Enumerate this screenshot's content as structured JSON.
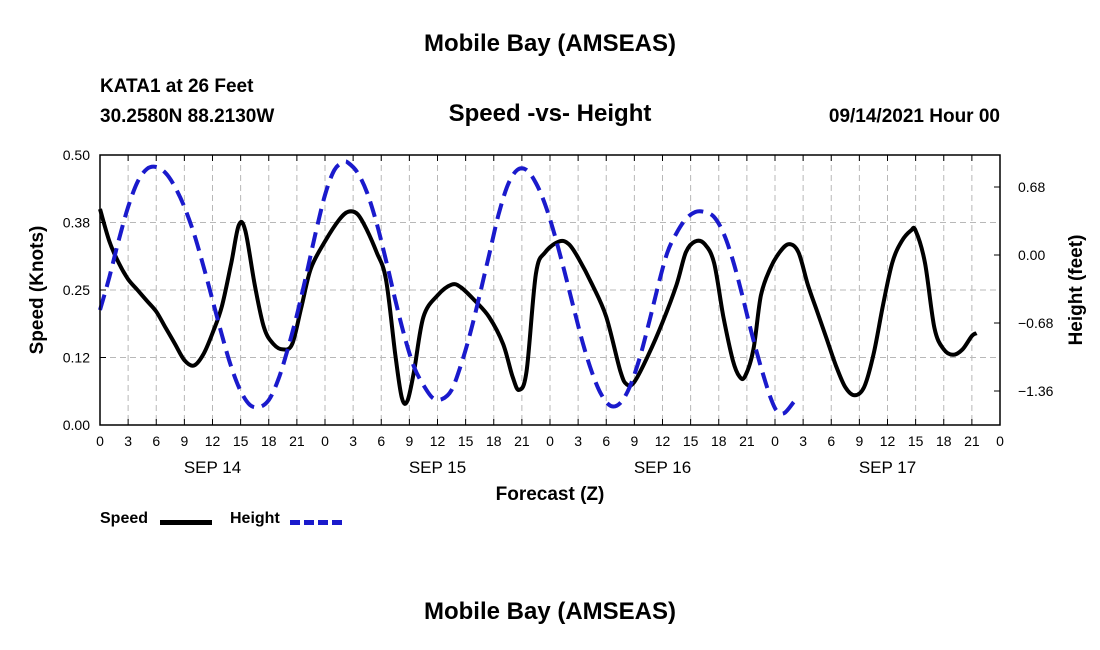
{
  "header": {
    "title": "Mobile Bay (AMSEAS)",
    "station": "KATA1 at 26 Feet",
    "coordinates": "30.2580N  88.2130W",
    "subtitle": "Speed -vs- Height",
    "datestamp": "09/14/2021 Hour 00"
  },
  "footer": {
    "title": "Mobile Bay (AMSEAS)"
  },
  "legend": {
    "speed_label": "Speed",
    "height_label": "Height"
  },
  "chart_data": {
    "type": "line",
    "title": "Speed -vs- Height",
    "xlabel": "Forecast (Z)",
    "ylabel": "Speed (Knots)",
    "y2label": "Height (feet)",
    "x_range_hours": [
      0,
      96
    ],
    "ylim": [
      0,
      0.5
    ],
    "y2lim": [
      -1.7,
      1.0
    ],
    "grid": true,
    "legend_position": "bottom-left",
    "y_ticks": [
      {
        "value": 0.0,
        "label": "0.00"
      },
      {
        "value": 0.125,
        "label": "0.12"
      },
      {
        "value": 0.25,
        "label": "0.25"
      },
      {
        "value": 0.375,
        "label": "0.38"
      },
      {
        "value": 0.5,
        "label": "0.50"
      }
    ],
    "y2_ticks": [
      {
        "value": 0.68,
        "label": "0.68"
      },
      {
        "value": 0.0,
        "label": "0.00"
      },
      {
        "value": -0.68,
        "label": "−0.68"
      },
      {
        "value": -1.36,
        "label": "−1.36"
      }
    ],
    "x_ticks": [
      {
        "hour": 0,
        "label": "0"
      },
      {
        "hour": 3,
        "label": "3"
      },
      {
        "hour": 6,
        "label": "6"
      },
      {
        "hour": 9,
        "label": "9"
      },
      {
        "hour": 12,
        "label": "12"
      },
      {
        "hour": 15,
        "label": "15"
      },
      {
        "hour": 18,
        "label": "18"
      },
      {
        "hour": 21,
        "label": "21"
      },
      {
        "hour": 24,
        "label": "0"
      },
      {
        "hour": 27,
        "label": "3"
      },
      {
        "hour": 30,
        "label": "6"
      },
      {
        "hour": 33,
        "label": "9"
      },
      {
        "hour": 36,
        "label": "12"
      },
      {
        "hour": 39,
        "label": "15"
      },
      {
        "hour": 42,
        "label": "18"
      },
      {
        "hour": 45,
        "label": "21"
      },
      {
        "hour": 48,
        "label": "0"
      },
      {
        "hour": 51,
        "label": "3"
      },
      {
        "hour": 54,
        "label": "6"
      },
      {
        "hour": 57,
        "label": "9"
      },
      {
        "hour": 60,
        "label": "12"
      },
      {
        "hour": 63,
        "label": "15"
      },
      {
        "hour": 66,
        "label": "18"
      },
      {
        "hour": 69,
        "label": "21"
      },
      {
        "hour": 72,
        "label": "0"
      },
      {
        "hour": 75,
        "label": "3"
      },
      {
        "hour": 78,
        "label": "6"
      },
      {
        "hour": 81,
        "label": "9"
      },
      {
        "hour": 84,
        "label": "12"
      },
      {
        "hour": 87,
        "label": "15"
      },
      {
        "hour": 90,
        "label": "18"
      },
      {
        "hour": 93,
        "label": "21"
      },
      {
        "hour": 96,
        "label": "0"
      }
    ],
    "day_labels": [
      {
        "hour": 12,
        "label": "SEP 14"
      },
      {
        "hour": 36,
        "label": "SEP 15"
      },
      {
        "hour": 60,
        "label": "SEP 16"
      },
      {
        "hour": 84,
        "label": "SEP 17"
      }
    ],
    "series": [
      {
        "name": "Speed",
        "axis": "left",
        "color": "#000000",
        "style": "solid",
        "points": [
          [
            0,
            0.4
          ],
          [
            1,
            0.34
          ],
          [
            2,
            0.3
          ],
          [
            3,
            0.27
          ],
          [
            4,
            0.25
          ],
          [
            5,
            0.23
          ],
          [
            6,
            0.21
          ],
          [
            7,
            0.18
          ],
          [
            8,
            0.15
          ],
          [
            9,
            0.12
          ],
          [
            10,
            0.11
          ],
          [
            11,
            0.13
          ],
          [
            12,
            0.17
          ],
          [
            13,
            0.22
          ],
          [
            14,
            0.3
          ],
          [
            14.8,
            0.37
          ],
          [
            15.5,
            0.36
          ],
          [
            16.5,
            0.26
          ],
          [
            17.5,
            0.18
          ],
          [
            18.5,
            0.15
          ],
          [
            19.5,
            0.14
          ],
          [
            20.5,
            0.15
          ],
          [
            21.5,
            0.22
          ],
          [
            22.5,
            0.29
          ],
          [
            24,
            0.34
          ],
          [
            25.5,
            0.38
          ],
          [
            26.5,
            0.395
          ],
          [
            27.5,
            0.39
          ],
          [
            28.5,
            0.36
          ],
          [
            29.5,
            0.32
          ],
          [
            30.5,
            0.27
          ],
          [
            31.5,
            0.13
          ],
          [
            32.2,
            0.05
          ],
          [
            32.8,
            0.045
          ],
          [
            33.5,
            0.1
          ],
          [
            34.5,
            0.2
          ],
          [
            36,
            0.24
          ],
          [
            37.5,
            0.26
          ],
          [
            38.5,
            0.255
          ],
          [
            40,
            0.23
          ],
          [
            41.5,
            0.2
          ],
          [
            43,
            0.15
          ],
          [
            44,
            0.09
          ],
          [
            44.7,
            0.065
          ],
          [
            45.5,
            0.1
          ],
          [
            46.5,
            0.28
          ],
          [
            47.5,
            0.32
          ],
          [
            49,
            0.34
          ],
          [
            50,
            0.335
          ],
          [
            51,
            0.31
          ],
          [
            52.5,
            0.26
          ],
          [
            54,
            0.2
          ],
          [
            55.5,
            0.1
          ],
          [
            56.2,
            0.075
          ],
          [
            57,
            0.08
          ],
          [
            58.5,
            0.13
          ],
          [
            60,
            0.19
          ],
          [
            61.5,
            0.26
          ],
          [
            62.5,
            0.32
          ],
          [
            63.5,
            0.34
          ],
          [
            64.5,
            0.335
          ],
          [
            65.5,
            0.3
          ],
          [
            66.5,
            0.2
          ],
          [
            67.5,
            0.12
          ],
          [
            68.2,
            0.09
          ],
          [
            68.8,
            0.09
          ],
          [
            69.7,
            0.14
          ],
          [
            70.5,
            0.24
          ],
          [
            71.5,
            0.29
          ],
          [
            72.5,
            0.32
          ],
          [
            73.5,
            0.335
          ],
          [
            74.5,
            0.32
          ],
          [
            75.5,
            0.26
          ],
          [
            76.5,
            0.21
          ],
          [
            77.5,
            0.16
          ],
          [
            78.5,
            0.11
          ],
          [
            79.5,
            0.07
          ],
          [
            80.5,
            0.055
          ],
          [
            81.5,
            0.07
          ],
          [
            82.5,
            0.13
          ],
          [
            83.5,
            0.22
          ],
          [
            84.5,
            0.3
          ],
          [
            85.5,
            0.34
          ],
          [
            86.5,
            0.36
          ],
          [
            87,
            0.36
          ],
          [
            88,
            0.3
          ],
          [
            89,
            0.18
          ],
          [
            90,
            0.14
          ],
          [
            91,
            0.13
          ],
          [
            92,
            0.14
          ],
          [
            93,
            0.165
          ],
          [
            93.5,
            0.17
          ]
        ]
      },
      {
        "name": "Height",
        "axis": "right",
        "color": "#1a1acc",
        "style": "dashed",
        "points": [
          [
            0,
            -0.55
          ],
          [
            1,
            -0.22
          ],
          [
            2,
            0.15
          ],
          [
            3,
            0.48
          ],
          [
            4,
            0.73
          ],
          [
            5,
            0.86
          ],
          [
            6,
            0.88
          ],
          [
            7,
            0.82
          ],
          [
            8,
            0.68
          ],
          [
            9,
            0.48
          ],
          [
            10,
            0.22
          ],
          [
            11,
            -0.1
          ],
          [
            12,
            -0.45
          ],
          [
            13,
            -0.8
          ],
          [
            14,
            -1.12
          ],
          [
            15,
            -1.36
          ],
          [
            16,
            -1.5
          ],
          [
            17,
            -1.52
          ],
          [
            18,
            -1.45
          ],
          [
            19,
            -1.25
          ],
          [
            20,
            -0.95
          ],
          [
            21,
            -0.6
          ],
          [
            22,
            -0.2
          ],
          [
            23,
            0.22
          ],
          [
            24,
            0.6
          ],
          [
            25,
            0.85
          ],
          [
            26,
            0.93
          ],
          [
            26.5,
            0.92
          ],
          [
            27.5,
            0.82
          ],
          [
            28.5,
            0.62
          ],
          [
            29.5,
            0.32
          ],
          [
            30.5,
            -0.05
          ],
          [
            31.5,
            -0.45
          ],
          [
            32.5,
            -0.82
          ],
          [
            33.5,
            -1.12
          ],
          [
            34.5,
            -1.3
          ],
          [
            35.5,
            -1.43
          ],
          [
            36.5,
            -1.44
          ],
          [
            37.5,
            -1.35
          ],
          [
            38.5,
            -1.1
          ],
          [
            39.5,
            -0.78
          ],
          [
            40.5,
            -0.4
          ],
          [
            41.5,
            0.0
          ],
          [
            42.5,
            0.4
          ],
          [
            43.5,
            0.7
          ],
          [
            44.5,
            0.85
          ],
          [
            45.5,
            0.85
          ],
          [
            46.5,
            0.72
          ],
          [
            47.5,
            0.5
          ],
          [
            48.5,
            0.2
          ],
          [
            49.5,
            -0.15
          ],
          [
            50.5,
            -0.52
          ],
          [
            51.5,
            -0.88
          ],
          [
            52.5,
            -1.18
          ],
          [
            53.5,
            -1.4
          ],
          [
            54.5,
            -1.51
          ],
          [
            55.5,
            -1.48
          ],
          [
            56.5,
            -1.32
          ],
          [
            57.5,
            -1.05
          ],
          [
            58.5,
            -0.7
          ],
          [
            59.5,
            -0.32
          ],
          [
            60.5,
            0.02
          ],
          [
            61.5,
            0.22
          ],
          [
            62.5,
            0.36
          ],
          [
            63.5,
            0.43
          ],
          [
            64.5,
            0.43
          ],
          [
            65.5,
            0.38
          ],
          [
            66.5,
            0.22
          ],
          [
            67.5,
            -0.05
          ],
          [
            68.5,
            -0.4
          ],
          [
            69.5,
            -0.78
          ],
          [
            70.5,
            -1.12
          ],
          [
            71.5,
            -1.42
          ],
          [
            72.2,
            -1.56
          ],
          [
            73,
            -1.58
          ],
          [
            74,
            -1.47
          ]
        ]
      }
    ]
  }
}
